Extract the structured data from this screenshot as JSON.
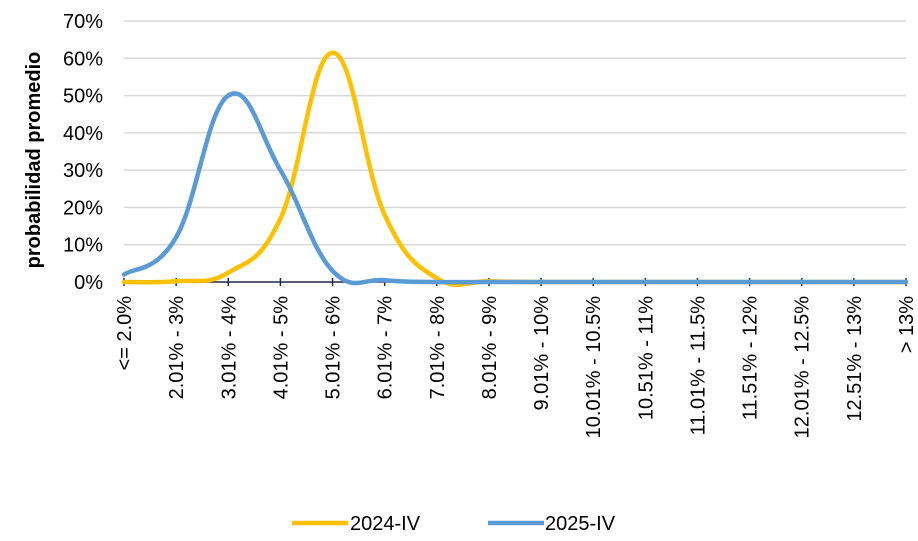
{
  "chart_data": {
    "type": "line",
    "title": "",
    "xlabel": "",
    "ylabel": "probabilidad promedio",
    "ylim": [
      0,
      70
    ],
    "y_ticks": [
      0,
      10,
      20,
      30,
      40,
      50,
      60,
      70
    ],
    "y_tick_format": "%",
    "grid": "horizontal",
    "legend_position": "bottom",
    "categories": [
      "<= 2.0%",
      "2.01% - 3%",
      "3.01% - 4%",
      "4.01% - 5%",
      "5.01% - 6%",
      "6.01% - 7%",
      "7.01% - 8%",
      "8.01% - 9%",
      "9.01% - 10%",
      "10.01% - 10.5%",
      "10.51% - 11%",
      "11.01% - 11.5%",
      "11.51% - 12%",
      "12.01% - 12.5%",
      "12.51% - 13%",
      "> 13%"
    ],
    "series": [
      {
        "name": "2024-IV",
        "color": "#FFC000",
        "values": [
          0,
          0.2,
          2.5,
          17,
          61.5,
          18,
          1,
          0.2,
          0,
          0,
          0,
          0,
          0,
          0,
          0,
          0
        ]
      },
      {
        "name": "2025-IV",
        "color": "#5B9BD5",
        "values": [
          2,
          12,
          50,
          30,
          3,
          0.5,
          0,
          0,
          0,
          0,
          0,
          0,
          0,
          0,
          0,
          0
        ]
      }
    ]
  }
}
